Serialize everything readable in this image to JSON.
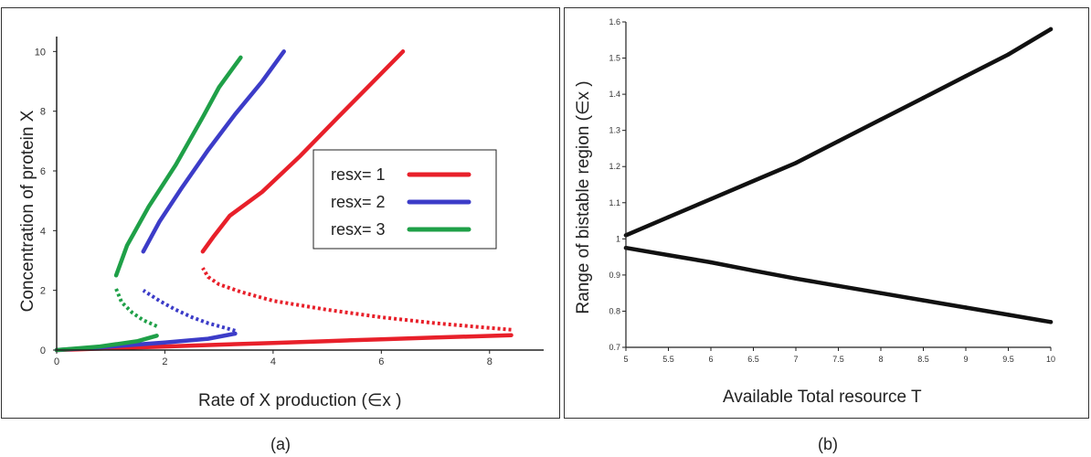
{
  "captions": {
    "a": "(a)",
    "b": "(b)"
  },
  "chart_data": [
    {
      "type": "line",
      "xlabel": "Rate of X production (∈x )",
      "ylabel": "Concentration of protein X",
      "xlim": [
        0,
        9
      ],
      "ylim": [
        0,
        10.5
      ],
      "xticks": [
        "0",
        "2",
        "4",
        "6",
        "8"
      ],
      "yticks": [
        "0",
        "2",
        "4",
        "6",
        "8",
        "10"
      ],
      "grid": false,
      "legend_position": "center-right",
      "series": [
        {
          "name": "resx= 1",
          "color": "#e8202a",
          "stable_low": [
            [
              0,
              0
            ],
            [
              1,
              0.06
            ],
            [
              2,
              0.12
            ],
            [
              3,
              0.18
            ],
            [
              4,
              0.24
            ],
            [
              5,
              0.3
            ],
            [
              6,
              0.36
            ],
            [
              7,
              0.42
            ],
            [
              8.4,
              0.5
            ]
          ],
          "unstable": [
            [
              8.4,
              0.68
            ],
            [
              8,
              0.74
            ],
            [
              7,
              0.9
            ],
            [
              6,
              1.1
            ],
            [
              5,
              1.35
            ],
            [
              4,
              1.65
            ],
            [
              3.4,
              1.95
            ],
            [
              3.0,
              2.2
            ],
            [
              2.8,
              2.45
            ],
            [
              2.7,
              2.75
            ]
          ],
          "stable_high": [
            [
              2.7,
              3.3
            ],
            [
              2.9,
              3.8
            ],
            [
              3.2,
              4.5
            ],
            [
              3.8,
              5.3
            ],
            [
              4.5,
              6.5
            ],
            [
              5.2,
              7.8
            ],
            [
              5.8,
              8.9
            ],
            [
              6.4,
              10
            ]
          ]
        },
        {
          "name": "resx= 2",
          "color": "#3c3cc8",
          "stable_low": [
            [
              0,
              0
            ],
            [
              1,
              0.12
            ],
            [
              2,
              0.25
            ],
            [
              2.8,
              0.38
            ],
            [
              3.3,
              0.55
            ]
          ],
          "unstable": [
            [
              3.3,
              0.65
            ],
            [
              3.1,
              0.75
            ],
            [
              2.8,
              0.9
            ],
            [
              2.5,
              1.1
            ],
            [
              2.2,
              1.35
            ],
            [
              1.9,
              1.65
            ],
            [
              1.6,
              2.0
            ]
          ],
          "stable_high": [
            [
              1.6,
              3.3
            ],
            [
              1.9,
              4.3
            ],
            [
              2.3,
              5.4
            ],
            [
              2.8,
              6.7
            ],
            [
              3.3,
              7.9
            ],
            [
              3.8,
              9.0
            ],
            [
              4.2,
              10
            ]
          ]
        },
        {
          "name": "resx= 3",
          "color": "#1fa048",
          "stable_low": [
            [
              0,
              0
            ],
            [
              0.8,
              0.12
            ],
            [
              1.5,
              0.3
            ],
            [
              1.85,
              0.48
            ]
          ],
          "unstable": [
            [
              1.85,
              0.8
            ],
            [
              1.6,
              1.0
            ],
            [
              1.4,
              1.25
            ],
            [
              1.2,
              1.6
            ],
            [
              1.1,
              2.05
            ]
          ],
          "stable_high": [
            [
              1.1,
              2.5
            ],
            [
              1.3,
              3.5
            ],
            [
              1.7,
              4.8
            ],
            [
              2.2,
              6.2
            ],
            [
              2.7,
              7.8
            ],
            [
              3.0,
              8.8
            ],
            [
              3.4,
              9.8
            ]
          ]
        }
      ]
    },
    {
      "type": "line",
      "xlabel": "Available Total resource T",
      "ylabel": "Range of bistable region (∈x )",
      "xlim": [
        5,
        10
      ],
      "ylim": [
        0.7,
        1.6
      ],
      "xticks": [
        "5",
        "5.5",
        "6",
        "6.5",
        "7",
        "7.5",
        "8",
        "8.5",
        "9",
        "9.5",
        "10"
      ],
      "yticks": [
        "0.7",
        "0.8",
        "0.9",
        "1",
        "1.1",
        "1.2",
        "1.3",
        "1.4",
        "1.5",
        "1.6"
      ],
      "grid": false,
      "series": [
        {
          "color": "#111111",
          "x": [
            5,
            5.5,
            6,
            6.5,
            7,
            7.5,
            8,
            8.5,
            9,
            9.5,
            10
          ],
          "y": [
            1.01,
            1.06,
            1.11,
            1.16,
            1.21,
            1.27,
            1.33,
            1.39,
            1.45,
            1.51,
            1.58
          ]
        },
        {
          "color": "#111111",
          "x": [
            5,
            5.5,
            6,
            6.5,
            7,
            7.5,
            8,
            8.5,
            9,
            9.5,
            10
          ],
          "y": [
            0.975,
            0.955,
            0.935,
            0.912,
            0.89,
            0.87,
            0.85,
            0.83,
            0.81,
            0.79,
            0.77
          ]
        }
      ]
    }
  ]
}
